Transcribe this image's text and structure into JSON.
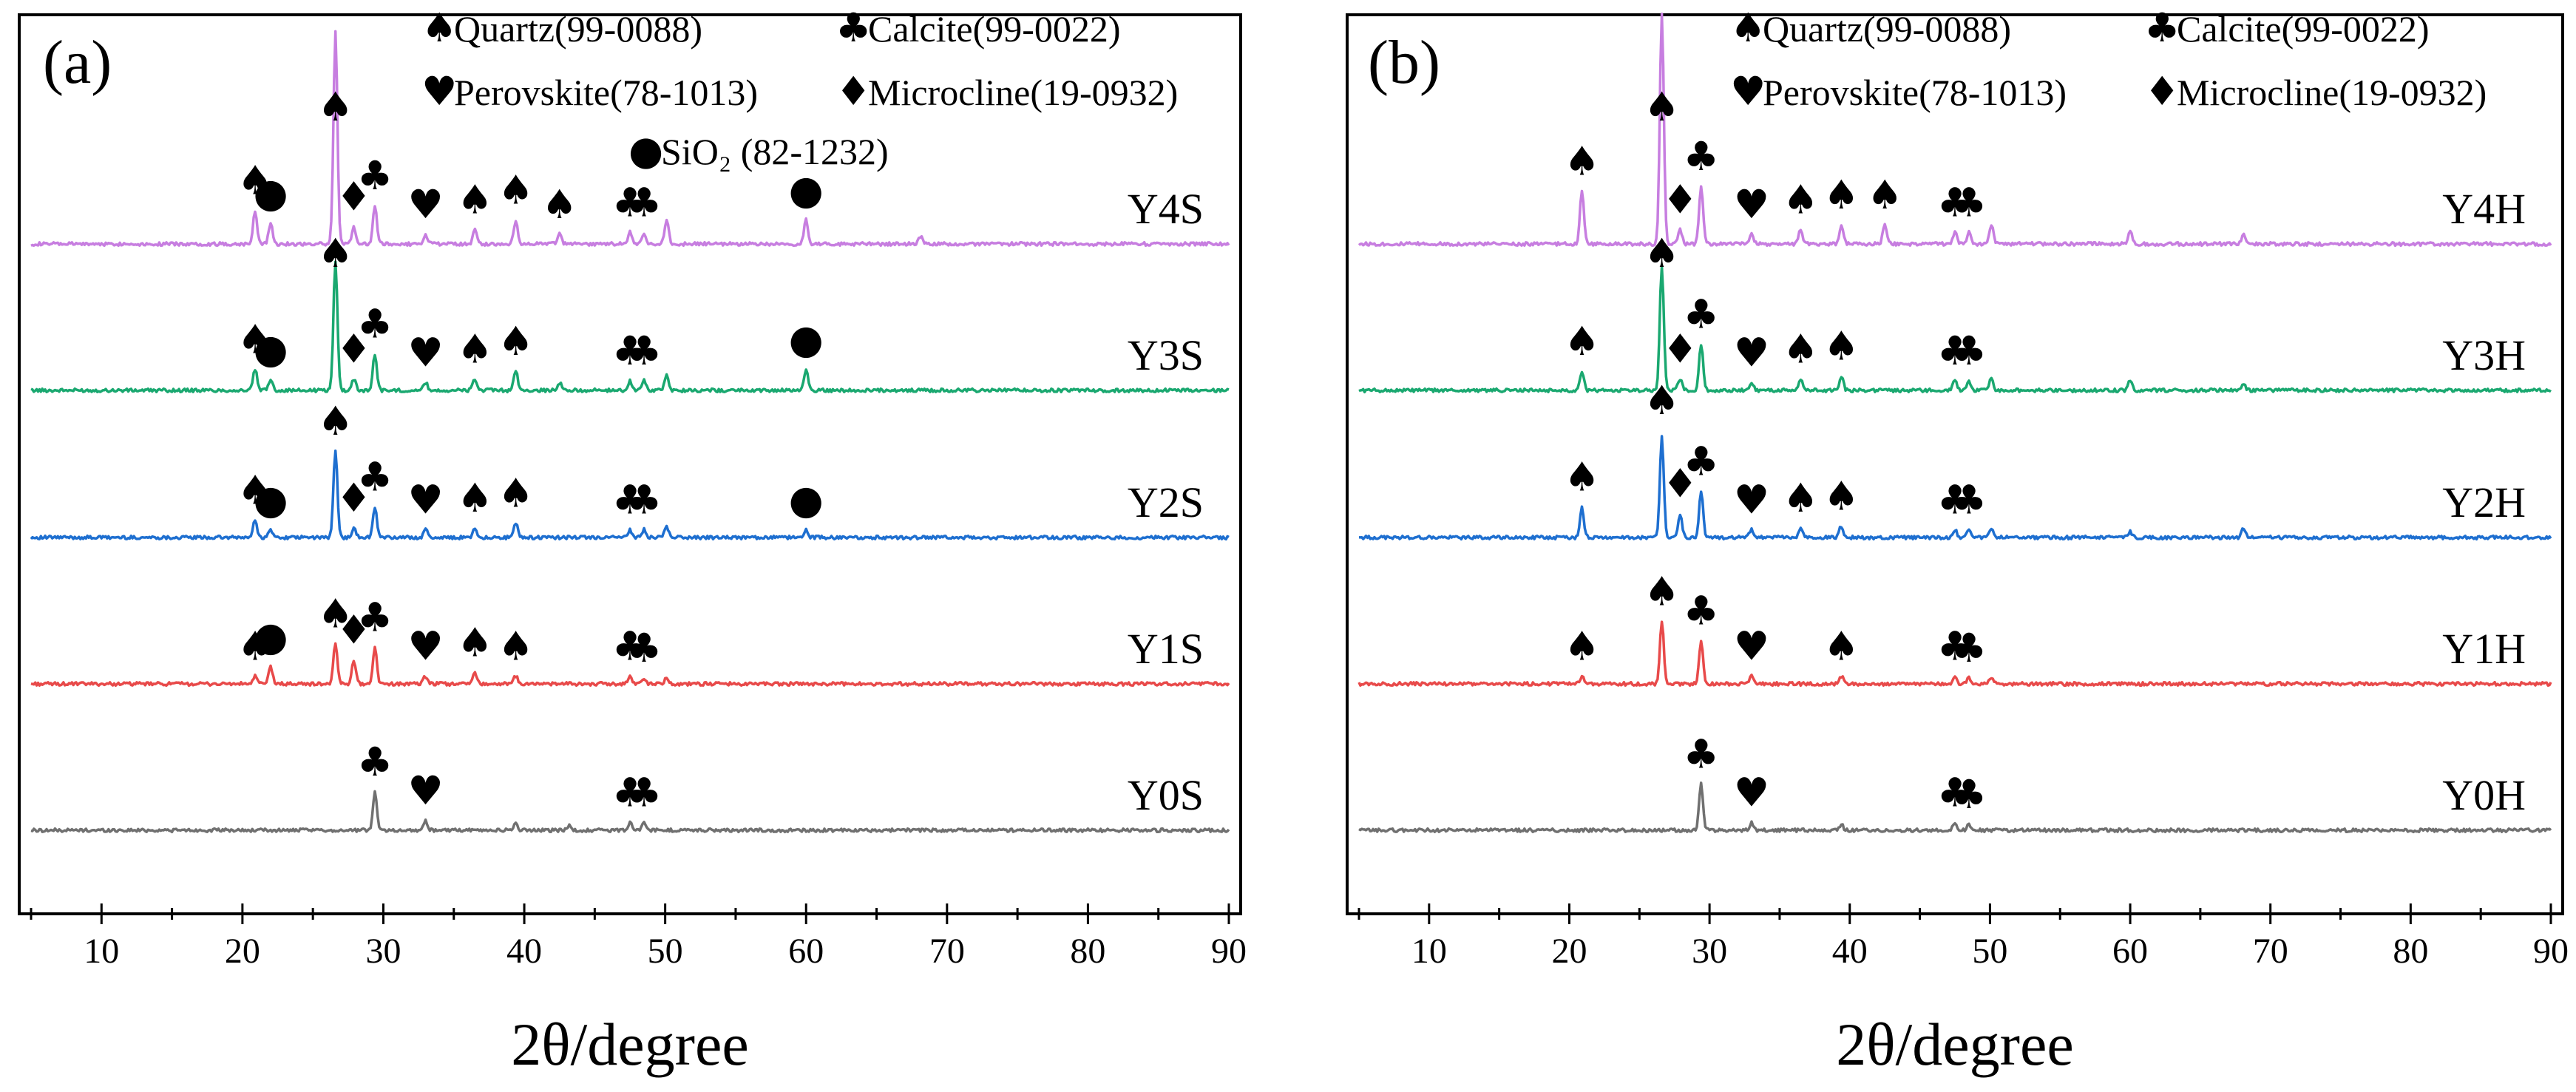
{
  "chart_data": [
    {
      "type": "line",
      "panel_label": "(a)",
      "xlabel": "2θ/degree",
      "ylabel": "",
      "xlim": [
        5,
        90
      ],
      "xticks": [
        10,
        20,
        30,
        40,
        50,
        60,
        70,
        80,
        90
      ],
      "legend": [
        {
          "symbol": "♠",
          "text": "Quartz(99-0088)"
        },
        {
          "symbol": "♣",
          "text": "Calcite(99-0022)"
        },
        {
          "symbol": "♥",
          "text": "Perovskite(78-1013)"
        },
        {
          "symbol": "♦",
          "text": "Microcline(19-0932)"
        },
        {
          "symbol": "●",
          "text": "SiO₂ (82-1232)"
        }
      ],
      "series": [
        {
          "name": "Y4S",
          "color": "#c77ee0",
          "peaks": [
            [
              20.9,
              0.35
            ],
            [
              22.0,
              0.22
            ],
            [
              26.6,
              2.2
            ],
            [
              27.9,
              0.18
            ],
            [
              29.4,
              0.4
            ],
            [
              33.0,
              0.1
            ],
            [
              36.5,
              0.15
            ],
            [
              39.4,
              0.25
            ],
            [
              42.5,
              0.1
            ],
            [
              47.5,
              0.12
            ],
            [
              48.5,
              0.12
            ],
            [
              50.1,
              0.25
            ],
            [
              60.0,
              0.25
            ],
            [
              68.1,
              0.08
            ]
          ],
          "markers": [
            [
              20.9,
              "♠"
            ],
            [
              22.0,
              "●"
            ],
            [
              26.6,
              "♠"
            ],
            [
              27.9,
              "♦"
            ],
            [
              29.4,
              "♣"
            ],
            [
              33.0,
              "♥"
            ],
            [
              36.5,
              "♠"
            ],
            [
              39.4,
              "♠"
            ],
            [
              42.5,
              "♠"
            ],
            [
              47.5,
              "♣"
            ],
            [
              48.5,
              "♣"
            ],
            [
              60.0,
              "●"
            ]
          ]
        },
        {
          "name": "Y3S",
          "color": "#1aa870",
          "peaks": [
            [
              20.9,
              0.22
            ],
            [
              22.0,
              0.12
            ],
            [
              26.6,
              1.35
            ],
            [
              27.9,
              0.12
            ],
            [
              29.4,
              0.38
            ],
            [
              33.0,
              0.08
            ],
            [
              36.5,
              0.12
            ],
            [
              39.4,
              0.2
            ],
            [
              42.5,
              0.08
            ],
            [
              47.5,
              0.1
            ],
            [
              48.5,
              0.1
            ],
            [
              50.1,
              0.15
            ],
            [
              60.0,
              0.22
            ]
          ],
          "markers": [
            [
              20.9,
              "♠"
            ],
            [
              22.0,
              "●"
            ],
            [
              26.6,
              "♠"
            ],
            [
              27.9,
              "♦"
            ],
            [
              29.4,
              "♣"
            ],
            [
              33.0,
              "♥"
            ],
            [
              36.5,
              "♠"
            ],
            [
              39.4,
              "♠"
            ],
            [
              47.5,
              "♣"
            ],
            [
              48.5,
              "♣"
            ],
            [
              60.0,
              "●"
            ]
          ]
        },
        {
          "name": "Y2S",
          "color": "#1e6fd0",
          "peaks": [
            [
              20.9,
              0.18
            ],
            [
              22.0,
              0.08
            ],
            [
              26.6,
              0.9
            ],
            [
              27.9,
              0.1
            ],
            [
              29.4,
              0.32
            ],
            [
              33.0,
              0.08
            ],
            [
              36.5,
              0.1
            ],
            [
              39.4,
              0.15
            ],
            [
              47.5,
              0.08
            ],
            [
              48.5,
              0.08
            ],
            [
              50.1,
              0.12
            ],
            [
              60.0,
              0.08
            ]
          ],
          "markers": [
            [
              20.9,
              "♠"
            ],
            [
              22.0,
              "●"
            ],
            [
              26.6,
              "♠"
            ],
            [
              27.9,
              "♦"
            ],
            [
              29.4,
              "♣"
            ],
            [
              33.0,
              "♥"
            ],
            [
              36.5,
              "♠"
            ],
            [
              39.4,
              "♠"
            ],
            [
              47.5,
              "♣"
            ],
            [
              48.5,
              "♣"
            ],
            [
              60.0,
              "●"
            ]
          ]
        },
        {
          "name": "Y1S",
          "color": "#e84a4a",
          "peaks": [
            [
              20.9,
              0.08
            ],
            [
              22.0,
              0.18
            ],
            [
              26.6,
              0.42
            ],
            [
              27.9,
              0.25
            ],
            [
              29.4,
              0.38
            ],
            [
              33.0,
              0.08
            ],
            [
              36.5,
              0.12
            ],
            [
              39.4,
              0.08
            ],
            [
              47.5,
              0.08
            ],
            [
              48.5,
              0.06
            ],
            [
              50.1,
              0.06
            ]
          ],
          "markers": [
            [
              20.9,
              "♠"
            ],
            [
              22.0,
              "●"
            ],
            [
              26.6,
              "♠"
            ],
            [
              27.9,
              "♦"
            ],
            [
              29.4,
              "♣"
            ],
            [
              33.0,
              "♥"
            ],
            [
              36.5,
              "♠"
            ],
            [
              39.4,
              "♠"
            ],
            [
              47.5,
              "♣"
            ],
            [
              48.5,
              "♣"
            ]
          ]
        },
        {
          "name": "Y0S",
          "color": "#707070",
          "peaks": [
            [
              29.4,
              0.4
            ],
            [
              33.0,
              0.1
            ],
            [
              39.4,
              0.08
            ],
            [
              43.2,
              0.05
            ],
            [
              47.5,
              0.08
            ],
            [
              48.5,
              0.08
            ]
          ],
          "markers": [
            [
              29.4,
              "♣"
            ],
            [
              33.0,
              "♥"
            ],
            [
              47.5,
              "♣"
            ],
            [
              48.5,
              "♣"
            ]
          ]
        }
      ]
    },
    {
      "type": "line",
      "panel_label": "(b)",
      "xlabel": "2θ/degree",
      "ylabel": "",
      "xlim": [
        5,
        90
      ],
      "xticks": [
        10,
        20,
        30,
        40,
        50,
        60,
        70,
        80,
        90
      ],
      "legend": [
        {
          "symbol": "♠",
          "text": "Quartz(99-0088)"
        },
        {
          "symbol": "♣",
          "text": "Calcite(99-0022)"
        },
        {
          "symbol": "♥",
          "text": "Perovskite(78-1013)"
        },
        {
          "symbol": "♦",
          "text": "Microcline(19-0932)"
        }
      ],
      "series": [
        {
          "name": "Y4H",
          "color": "#c77ee0",
          "peaks": [
            [
              20.9,
              0.55
            ],
            [
              26.6,
              2.4
            ],
            [
              27.9,
              0.15
            ],
            [
              29.4,
              0.6
            ],
            [
              33.0,
              0.1
            ],
            [
              36.5,
              0.15
            ],
            [
              39.4,
              0.2
            ],
            [
              42.5,
              0.2
            ],
            [
              47.5,
              0.12
            ],
            [
              48.5,
              0.12
            ],
            [
              50.1,
              0.2
            ],
            [
              60.0,
              0.15
            ],
            [
              68.1,
              0.1
            ]
          ],
          "markers": [
            [
              20.9,
              "♠"
            ],
            [
              26.6,
              "♠"
            ],
            [
              27.9,
              "♦"
            ],
            [
              29.4,
              "♣"
            ],
            [
              33.0,
              "♥"
            ],
            [
              36.5,
              "♠"
            ],
            [
              39.4,
              "♠"
            ],
            [
              42.5,
              "♠"
            ],
            [
              47.5,
              "♣"
            ],
            [
              48.5,
              "♣"
            ]
          ]
        },
        {
          "name": "Y3H",
          "color": "#1aa870",
          "peaks": [
            [
              20.9,
              0.2
            ],
            [
              26.6,
              1.3
            ],
            [
              27.9,
              0.12
            ],
            [
              29.4,
              0.48
            ],
            [
              33.0,
              0.08
            ],
            [
              36.5,
              0.12
            ],
            [
              39.4,
              0.15
            ],
            [
              47.5,
              0.1
            ],
            [
              48.5,
              0.1
            ],
            [
              50.1,
              0.12
            ],
            [
              60.0,
              0.1
            ],
            [
              68.1,
              0.06
            ]
          ],
          "markers": [
            [
              20.9,
              "♠"
            ],
            [
              26.6,
              "♠"
            ],
            [
              27.9,
              "♦"
            ],
            [
              29.4,
              "♣"
            ],
            [
              33.0,
              "♥"
            ],
            [
              36.5,
              "♠"
            ],
            [
              39.4,
              "♠"
            ],
            [
              47.5,
              "♣"
            ],
            [
              48.5,
              "♣"
            ]
          ]
        },
        {
          "name": "Y2H",
          "color": "#1e6fd0",
          "peaks": [
            [
              20.9,
              0.32
            ],
            [
              26.6,
              1.05
            ],
            [
              27.9,
              0.25
            ],
            [
              29.4,
              0.48
            ],
            [
              33.0,
              0.08
            ],
            [
              36.5,
              0.1
            ],
            [
              39.4,
              0.12
            ],
            [
              47.5,
              0.08
            ],
            [
              48.5,
              0.08
            ],
            [
              50.1,
              0.1
            ],
            [
              60.0,
              0.06
            ],
            [
              68.1,
              0.1
            ]
          ],
          "markers": [
            [
              20.9,
              "♠"
            ],
            [
              26.6,
              "♠"
            ],
            [
              27.9,
              "♦"
            ],
            [
              29.4,
              "♣"
            ],
            [
              33.0,
              "♥"
            ],
            [
              36.5,
              "♠"
            ],
            [
              39.4,
              "♠"
            ],
            [
              47.5,
              "♣"
            ],
            [
              48.5,
              "♣"
            ]
          ]
        },
        {
          "name": "Y1H",
          "color": "#e84a4a",
          "peaks": [
            [
              20.9,
              0.08
            ],
            [
              26.6,
              0.65
            ],
            [
              29.4,
              0.45
            ],
            [
              33.0,
              0.08
            ],
            [
              39.4,
              0.08
            ],
            [
              47.5,
              0.08
            ],
            [
              48.5,
              0.06
            ],
            [
              50.1,
              0.06
            ]
          ],
          "markers": [
            [
              20.9,
              "♠"
            ],
            [
              26.6,
              "♠"
            ],
            [
              29.4,
              "♣"
            ],
            [
              33.0,
              "♥"
            ],
            [
              39.4,
              "♠"
            ],
            [
              47.5,
              "♣"
            ],
            [
              48.5,
              "♣"
            ]
          ]
        },
        {
          "name": "Y0H",
          "color": "#707070",
          "peaks": [
            [
              29.4,
              0.48
            ],
            [
              33.0,
              0.08
            ],
            [
              39.4,
              0.06
            ],
            [
              47.5,
              0.08
            ],
            [
              48.5,
              0.06
            ]
          ],
          "markers": [
            [
              29.4,
              "♣"
            ],
            [
              33.0,
              "♥"
            ],
            [
              47.5,
              "♣"
            ],
            [
              48.5,
              "♣"
            ]
          ]
        }
      ]
    }
  ]
}
